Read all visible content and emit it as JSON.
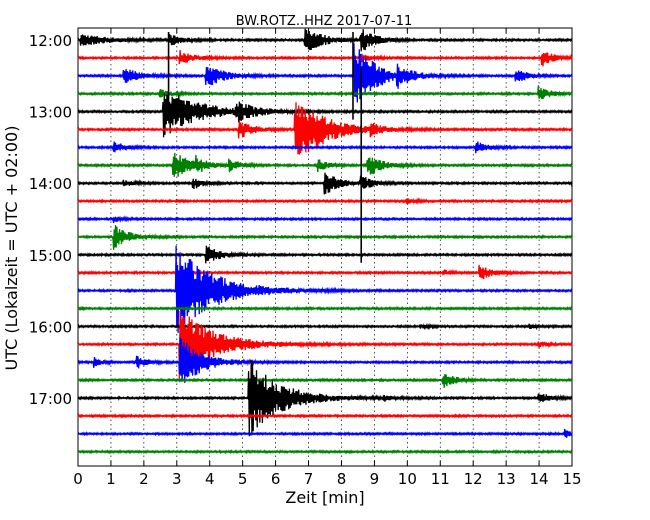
{
  "chart_data": {
    "type": "line",
    "title": "BW.ROTZ..HHZ 2017-07-11",
    "xlabel": "Zeit  [min]",
    "ylabel": "UTC (Lokalzeit = UTC + 02:00)",
    "xlim": [
      0,
      15
    ],
    "x_ticks": [
      "0",
      "1",
      "2",
      "3",
      "4",
      "5",
      "6",
      "7",
      "8",
      "9",
      "10",
      "11",
      "12",
      "13",
      "14",
      "15"
    ],
    "y_tick_labels": [
      {
        "label": "12:00",
        "trace": 0
      },
      {
        "label": "13:00",
        "trace": 4
      },
      {
        "label": "14:00",
        "trace": 8
      },
      {
        "label": "15:00",
        "trace": 12
      },
      {
        "label": "16:00",
        "trace": 16
      },
      {
        "label": "17:00",
        "trace": 20
      }
    ],
    "trace_interval_min": 15,
    "trace_colors": [
      "#000000",
      "#ff0000",
      "#0000ff",
      "#008000"
    ],
    "grid": "vertical dotted",
    "traces": [
      {
        "start": "12:00",
        "events": [
          {
            "x": 0.1,
            "amp": 6,
            "decay": 0.8
          },
          {
            "x": 2.8,
            "amp": 5,
            "decay": 0.4
          },
          {
            "x": 6.9,
            "amp": 14,
            "decay": 0.5
          },
          {
            "x": 8.6,
            "amp": 12,
            "decay": 0.4
          }
        ]
      },
      {
        "start": "12:15",
        "events": [
          {
            "x": 3.1,
            "amp": 7,
            "decay": 0.4
          },
          {
            "x": 8.6,
            "amp": 4,
            "decay": 0.3
          },
          {
            "x": 14.1,
            "amp": 9,
            "decay": 0.3
          }
        ]
      },
      {
        "start": "12:30",
        "events": [
          {
            "x": 1.4,
            "amp": 9,
            "decay": 0.4
          },
          {
            "x": 3.9,
            "amp": 12,
            "decay": 0.5
          },
          {
            "x": 8.4,
            "amp": 35,
            "decay": 0.6
          },
          {
            "x": 9.7,
            "amp": 9,
            "decay": 0.4
          },
          {
            "x": 13.3,
            "amp": 9,
            "decay": 0.3
          }
        ]
      },
      {
        "start": "12:45",
        "events": [
          {
            "x": 2.5,
            "amp": 4,
            "decay": 0.3
          },
          {
            "x": 14.0,
            "amp": 8,
            "decay": 0.3
          }
        ]
      },
      {
        "start": "13:00",
        "events": [
          {
            "x": 2.6,
            "amp": 26,
            "decay": 1.0
          },
          {
            "x": 4.8,
            "amp": 9,
            "decay": 0.5
          }
        ]
      },
      {
        "start": "13:15",
        "events": [
          {
            "x": 4.9,
            "amp": 10,
            "decay": 0.4
          },
          {
            "x": 6.6,
            "amp": 40,
            "decay": 0.8
          },
          {
            "x": 8.9,
            "amp": 5,
            "decay": 0.3
          }
        ]
      },
      {
        "start": "13:30",
        "events": [
          {
            "x": 1.1,
            "amp": 6,
            "decay": 0.3
          },
          {
            "x": 12.1,
            "amp": 6,
            "decay": 0.3
          }
        ]
      },
      {
        "start": "13:45",
        "events": [
          {
            "x": 2.9,
            "amp": 14,
            "decay": 0.5
          },
          {
            "x": 3.6,
            "amp": 6,
            "decay": 0.3
          },
          {
            "x": 4.6,
            "amp": 6,
            "decay": 0.3
          },
          {
            "x": 7.3,
            "amp": 6,
            "decay": 0.3
          },
          {
            "x": 8.8,
            "amp": 12,
            "decay": 0.4
          }
        ]
      },
      {
        "start": "14:00",
        "events": [
          {
            "x": 1.4,
            "amp": 3,
            "decay": 0.3
          },
          {
            "x": 3.5,
            "amp": 6,
            "decay": 0.3
          },
          {
            "x": 7.5,
            "amp": 12,
            "decay": 0.4
          },
          {
            "x": 8.6,
            "amp": 8,
            "decay": 0.3
          },
          {
            "x": 15.0,
            "amp": 3,
            "decay": 0.2
          }
        ]
      },
      {
        "start": "14:15",
        "events": [
          {
            "x": 10.0,
            "amp": 3,
            "decay": 0.2
          }
        ]
      },
      {
        "start": "14:30",
        "events": [
          {
            "x": 1.1,
            "amp": 3,
            "decay": 0.2
          }
        ]
      },
      {
        "start": "14:45",
        "events": [
          {
            "x": 1.1,
            "amp": 13,
            "decay": 0.4
          }
        ]
      },
      {
        "start": "15:00",
        "events": [
          {
            "x": 3.9,
            "amp": 9,
            "decay": 0.4
          }
        ]
      },
      {
        "start": "15:15",
        "events": [
          {
            "x": 11.1,
            "amp": 3,
            "decay": 0.2
          },
          {
            "x": 12.2,
            "amp": 9,
            "decay": 0.3
          }
        ]
      },
      {
        "start": "15:30",
        "events": [
          {
            "x": 3.0,
            "amp": 45,
            "decay": 1.1
          }
        ]
      },
      {
        "start": "15:45",
        "events": []
      },
      {
        "start": "16:00",
        "events": [
          {
            "x": 10.4,
            "amp": 2,
            "decay": 0.2
          },
          {
            "x": 13.7,
            "amp": 2,
            "decay": 0.2
          }
        ]
      },
      {
        "start": "16:15",
        "events": [
          {
            "x": 3.1,
            "amp": 36,
            "decay": 1.0
          },
          {
            "x": 14.0,
            "amp": 3,
            "decay": 0.2
          }
        ]
      },
      {
        "start": "16:30",
        "events": [
          {
            "x": 0.5,
            "amp": 5,
            "decay": 0.2
          },
          {
            "x": 1.8,
            "amp": 6,
            "decay": 0.3
          },
          {
            "x": 3.1,
            "amp": 28,
            "decay": 0.6
          }
        ]
      },
      {
        "start": "16:45",
        "events": [
          {
            "x": 11.1,
            "amp": 9,
            "decay": 0.3
          }
        ]
      },
      {
        "start": "17:00",
        "events": [
          {
            "x": 5.2,
            "amp": 40,
            "decay": 0.9
          },
          {
            "x": 9.3,
            "amp": 3,
            "decay": 0.2
          },
          {
            "x": 14.0,
            "amp": 6,
            "decay": 0.3
          }
        ]
      },
      {
        "start": "17:15",
        "events": []
      },
      {
        "start": "17:30",
        "events": [
          {
            "x": 14.8,
            "amp": 4,
            "decay": 0.2
          }
        ]
      },
      {
        "start": "17:45",
        "events": []
      }
    ],
    "vertical_spikes": [
      {
        "x": 2.75,
        "from_trace": 0,
        "to_trace": 4
      },
      {
        "x": 8.35,
        "from_trace": 0,
        "to_trace": 4
      },
      {
        "x": 8.6,
        "from_trace": 2,
        "to_trace": 12
      }
    ]
  }
}
